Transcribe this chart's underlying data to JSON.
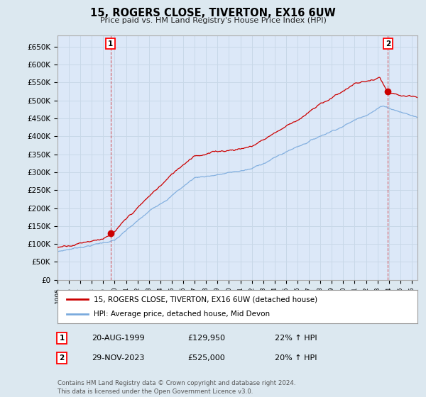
{
  "title": "15, ROGERS CLOSE, TIVERTON, EX16 6UW",
  "subtitle": "Price paid vs. HM Land Registry's House Price Index (HPI)",
  "ylabel_ticks": [
    "£0",
    "£50K",
    "£100K",
    "£150K",
    "£200K",
    "£250K",
    "£300K",
    "£350K",
    "£400K",
    "£450K",
    "£500K",
    "£550K",
    "£600K",
    "£650K"
  ],
  "ytick_values": [
    0,
    50000,
    100000,
    150000,
    200000,
    250000,
    300000,
    350000,
    400000,
    450000,
    500000,
    550000,
    600000,
    650000
  ],
  "ylim": [
    0,
    680000
  ],
  "xlim_start": 1995.0,
  "xlim_end": 2026.5,
  "grid_color": "#c8d8e8",
  "background_color": "#dce8f0",
  "plot_bg_color": "#dce8f8",
  "hpi_line_color": "#7aaadd",
  "price_line_color": "#cc0000",
  "sale1_date_x": 1999.64,
  "sale1_price": 129950,
  "sale2_date_x": 2023.91,
  "sale2_price": 525000,
  "legend_label1": "15, ROGERS CLOSE, TIVERTON, EX16 6UW (detached house)",
  "legend_label2": "HPI: Average price, detached house, Mid Devon",
  "annotation1_date": "20-AUG-1999",
  "annotation1_price": "£129,950",
  "annotation1_hpi": "22% ↑ HPI",
  "annotation2_date": "29-NOV-2023",
  "annotation2_price": "£525,000",
  "annotation2_hpi": "20% ↑ HPI",
  "footer": "Contains HM Land Registry data © Crown copyright and database right 2024.\nThis data is licensed under the Open Government Licence v3.0."
}
